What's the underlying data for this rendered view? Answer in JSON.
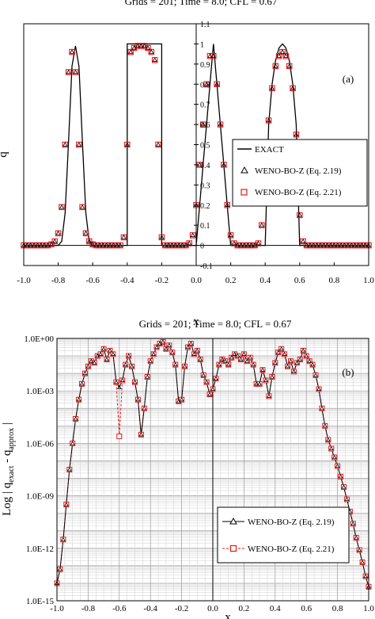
{
  "chart_data": [
    {
      "id": "a",
      "type": "scatter",
      "title": "Grids = 201; Time = 8.0; CFL = 0.67",
      "panel_label": "(a)",
      "xlabel": "x",
      "ylabel": "q",
      "xlim": [
        -1.0,
        1.0
      ],
      "ylim": [
        -0.1,
        1.1
      ],
      "x_ticks": [
        "-1.0",
        "-0.8",
        "-0.6",
        "-0.4",
        "-0.2",
        "0.0",
        "0.2",
        "0.4",
        "0.6",
        "0.8",
        "1.0"
      ],
      "y_ticks": [
        "-0.1",
        "0",
        "0.1",
        "0.2",
        "0.3",
        "0.4",
        "0.5",
        "0.6",
        "0.7",
        "0.8",
        "0.9",
        "1",
        "1.1"
      ],
      "grid": false,
      "legend_position": "right",
      "legend": [
        "EXACT",
        "WENO-BO-Z (Eq. 2.19)",
        "WENO-BO-Z (Eq. 2.21)"
      ],
      "series": [
        {
          "name": "EXACT",
          "style": "line",
          "color": "#000000",
          "x": [
            -1.0,
            -0.8,
            -0.78,
            -0.76,
            -0.74,
            -0.72,
            -0.7,
            -0.68,
            -0.66,
            -0.64,
            -0.62,
            -0.6,
            -0.4,
            -0.4,
            -0.2,
            -0.2,
            0.0,
            0.02,
            0.04,
            0.06,
            0.08,
            0.1,
            0.12,
            0.14,
            0.16,
            0.18,
            0.2,
            0.4,
            0.42,
            0.44,
            0.46,
            0.48,
            0.5,
            0.52,
            0.54,
            0.56,
            0.58,
            0.6,
            1.0
          ],
          "y": [
            0.0,
            0.0,
            0.02,
            0.16,
            0.52,
            0.89,
            0.99,
            0.89,
            0.52,
            0.16,
            0.02,
            0.0,
            0.0,
            1.0,
            1.0,
            0.0,
            0.0,
            0.2,
            0.4,
            0.6,
            0.8,
            1.0,
            0.8,
            0.6,
            0.4,
            0.2,
            0.0,
            0.0,
            0.6,
            0.8,
            0.917,
            0.98,
            1.0,
            0.98,
            0.917,
            0.8,
            0.6,
            0.0,
            0.0
          ]
        },
        {
          "name": "WENO-BO-Z (Eq. 2.19)",
          "style": "marker",
          "marker": "triangle",
          "color": "#000000",
          "x": [
            -1.0,
            -0.98,
            -0.96,
            -0.94,
            -0.92,
            -0.9,
            -0.88,
            -0.86,
            -0.84,
            -0.82,
            -0.8,
            -0.78,
            -0.76,
            -0.74,
            -0.72,
            -0.7,
            -0.68,
            -0.66,
            -0.64,
            -0.62,
            -0.6,
            -0.58,
            -0.56,
            -0.54,
            -0.52,
            -0.5,
            -0.48,
            -0.46,
            -0.44,
            -0.42,
            -0.4,
            -0.38,
            -0.36,
            -0.34,
            -0.32,
            -0.3,
            -0.28,
            -0.26,
            -0.24,
            -0.22,
            -0.2,
            -0.18,
            -0.16,
            -0.14,
            -0.12,
            -0.1,
            -0.08,
            -0.06,
            -0.04,
            -0.02,
            0.0,
            0.02,
            0.04,
            0.06,
            0.08,
            0.1,
            0.12,
            0.14,
            0.16,
            0.18,
            0.2,
            0.22,
            0.24,
            0.26,
            0.28,
            0.3,
            0.32,
            0.34,
            0.36,
            0.38,
            0.4,
            0.42,
            0.44,
            0.46,
            0.48,
            0.5,
            0.52,
            0.54,
            0.56,
            0.58,
            0.6,
            0.62,
            0.64,
            0.66,
            0.68,
            0.7,
            0.72,
            0.74,
            0.76,
            0.78,
            0.8,
            0.82,
            0.84,
            0.86,
            0.88,
            0.9,
            0.92,
            0.94,
            0.96,
            0.98,
            1.0
          ],
          "y": [
            0.0,
            0.0,
            0.0,
            0.0,
            0.0,
            0.0,
            0.0,
            0.0,
            0.005,
            0.02,
            0.06,
            0.19,
            0.5,
            0.86,
            0.96,
            0.86,
            0.5,
            0.19,
            0.06,
            0.02,
            0.005,
            0.0,
            0.0,
            0.0,
            0.0,
            0.0,
            0.0,
            0.0,
            0.0,
            0.04,
            0.5,
            0.96,
            0.98,
            0.99,
            0.99,
            0.99,
            0.98,
            0.96,
            0.92,
            0.5,
            0.04,
            0.0,
            0.0,
            0.0,
            0.0,
            0.0,
            0.0,
            0.0,
            0.01,
            0.05,
            0.2,
            0.4,
            0.6,
            0.8,
            0.94,
            0.94,
            0.8,
            0.6,
            0.4,
            0.2,
            0.05,
            0.01,
            0.0,
            0.0,
            0.0,
            0.0,
            0.0,
            0.0,
            0.01,
            0.1,
            0.42,
            0.62,
            0.78,
            0.89,
            0.94,
            0.96,
            0.94,
            0.89,
            0.78,
            0.55,
            0.15,
            0.02,
            0.0,
            0.0,
            0.0,
            0.0,
            0.0,
            0.0,
            0.0,
            0.0,
            0.0,
            0.0,
            0.0,
            0.0,
            0.0,
            0.0,
            0.0,
            0.0,
            0.0,
            0.0,
            0.0
          ]
        },
        {
          "name": "WENO-BO-Z (Eq. 2.21)",
          "style": "marker",
          "marker": "square",
          "color": "#e8181c",
          "x": [
            -1.0,
            -0.98,
            -0.96,
            -0.94,
            -0.92,
            -0.9,
            -0.88,
            -0.86,
            -0.84,
            -0.82,
            -0.8,
            -0.78,
            -0.76,
            -0.74,
            -0.72,
            -0.7,
            -0.68,
            -0.66,
            -0.64,
            -0.62,
            -0.6,
            -0.58,
            -0.56,
            -0.54,
            -0.52,
            -0.5,
            -0.48,
            -0.46,
            -0.44,
            -0.42,
            -0.4,
            -0.38,
            -0.36,
            -0.34,
            -0.32,
            -0.3,
            -0.28,
            -0.26,
            -0.24,
            -0.22,
            -0.2,
            -0.18,
            -0.16,
            -0.14,
            -0.12,
            -0.1,
            -0.08,
            -0.06,
            -0.04,
            -0.02,
            0.0,
            0.02,
            0.04,
            0.06,
            0.08,
            0.1,
            0.12,
            0.14,
            0.16,
            0.18,
            0.2,
            0.22,
            0.24,
            0.26,
            0.28,
            0.3,
            0.32,
            0.34,
            0.36,
            0.38,
            0.4,
            0.42,
            0.44,
            0.46,
            0.48,
            0.5,
            0.52,
            0.54,
            0.56,
            0.58,
            0.6,
            0.62,
            0.64,
            0.66,
            0.68,
            0.7,
            0.72,
            0.74,
            0.76,
            0.78,
            0.8,
            0.82,
            0.84,
            0.86,
            0.88,
            0.9,
            0.92,
            0.94,
            0.96,
            0.98,
            1.0
          ],
          "y": [
            0.0,
            0.0,
            0.0,
            0.0,
            0.0,
            0.0,
            0.0,
            0.0,
            0.005,
            0.02,
            0.06,
            0.19,
            0.5,
            0.86,
            0.96,
            0.86,
            0.5,
            0.19,
            0.06,
            0.02,
            0.005,
            0.0,
            0.0,
            0.0,
            0.0,
            0.0,
            0.0,
            0.0,
            0.0,
            0.04,
            0.5,
            0.96,
            0.98,
            0.99,
            0.99,
            0.99,
            0.98,
            0.96,
            0.92,
            0.5,
            0.04,
            0.0,
            0.0,
            0.0,
            0.0,
            0.0,
            0.0,
            0.0,
            0.01,
            0.05,
            0.2,
            0.4,
            0.6,
            0.8,
            0.94,
            0.94,
            0.8,
            0.6,
            0.4,
            0.2,
            0.05,
            0.01,
            0.0,
            0.0,
            0.0,
            0.0,
            0.0,
            0.0,
            0.01,
            0.1,
            0.42,
            0.62,
            0.78,
            0.89,
            0.94,
            0.96,
            0.94,
            0.89,
            0.78,
            0.55,
            0.15,
            0.02,
            0.0,
            0.0,
            0.0,
            0.0,
            0.0,
            0.0,
            0.0,
            0.0,
            0.0,
            0.0,
            0.0,
            0.0,
            0.0,
            0.0,
            0.0,
            0.0,
            0.0,
            0.0,
            0.0
          ]
        }
      ]
    },
    {
      "id": "b",
      "type": "line",
      "title": "Grids = 201; Time = 8.0; CFL = 0.67",
      "panel_label": "(b)",
      "xlabel": "x",
      "ylabel": "Log | q_exact - q_approx |",
      "ylabel_parts": {
        "prefix": "Log | q",
        "sub1": "exact",
        "middle": " - q",
        "sub2": "approx",
        "suffix": " |"
      },
      "xlim": [
        -1.0,
        1.0
      ],
      "ylim_log10": [
        -15,
        0
      ],
      "y_scale": "log",
      "x_ticks": [
        "-1.0",
        "-0.8",
        "-0.6",
        "-0.4",
        "-0.2",
        "0.0",
        "0.2",
        "0.4",
        "0.6",
        "0.8",
        "1.0"
      ],
      "y_ticks": [
        "1.0E+00",
        "1.0E-03",
        "1.0E-06",
        "1.0E-09",
        "1.0E-12",
        "1.0E-15"
      ],
      "grid": true,
      "legend_position": "bottom-right",
      "legend": [
        "WENO-BO-Z (Eq. 2.19)",
        "WENO-BO-Z (Eq. 2.21)"
      ],
      "series": [
        {
          "name": "WENO-BO-Z (Eq. 2.19)",
          "style": "line-marker",
          "marker": "triangle",
          "color": "#000000",
          "dash": "solid",
          "x": [
            -1.0,
            -0.98,
            -0.96,
            -0.94,
            -0.92,
            -0.9,
            -0.88,
            -0.86,
            -0.84,
            -0.82,
            -0.8,
            -0.78,
            -0.76,
            -0.74,
            -0.72,
            -0.7,
            -0.68,
            -0.66,
            -0.64,
            -0.62,
            -0.6,
            -0.58,
            -0.56,
            -0.54,
            -0.52,
            -0.5,
            -0.48,
            -0.46,
            -0.44,
            -0.42,
            -0.4,
            -0.38,
            -0.36,
            -0.34,
            -0.32,
            -0.3,
            -0.28,
            -0.26,
            -0.24,
            -0.22,
            -0.2,
            -0.18,
            -0.16,
            -0.14,
            -0.12,
            -0.1,
            -0.08,
            -0.06,
            -0.04,
            -0.02,
            0.0,
            0.02,
            0.04,
            0.06,
            0.08,
            0.1,
            0.12,
            0.14,
            0.16,
            0.18,
            0.2,
            0.22,
            0.24,
            0.26,
            0.28,
            0.3,
            0.32,
            0.34,
            0.36,
            0.38,
            0.4,
            0.42,
            0.44,
            0.46,
            0.48,
            0.5,
            0.52,
            0.54,
            0.56,
            0.58,
            0.6,
            0.62,
            0.64,
            0.66,
            0.68,
            0.7,
            0.72,
            0.74,
            0.76,
            0.78,
            0.8,
            0.82,
            0.84,
            0.86,
            0.88,
            0.9,
            0.92,
            0.94,
            0.96,
            0.98,
            1.0
          ],
          "y_log10": [
            -14.0,
            -13.2,
            -11.5,
            -9.5,
            -7.5,
            -6.0,
            -4.6,
            -3.5,
            -2.6,
            -2.0,
            -1.6,
            -1.3,
            -1.4,
            -1.0,
            -0.9,
            -0.6,
            -1.2,
            -0.7,
            -0.9,
            -2.5,
            -2.8,
            -2.4,
            -1.5,
            -1.0,
            -1.6,
            -2.5,
            -3.5,
            -5.5,
            -4.0,
            -2.2,
            -1.3,
            -0.9,
            -0.5,
            -0.3,
            -0.2,
            -0.6,
            -0.4,
            -0.8,
            -1.5,
            -3.6,
            -3.5,
            -1.6,
            -0.5,
            -0.3,
            -0.9,
            -0.7,
            -1.2,
            -2.1,
            -2.5,
            -3.2,
            -2.9,
            -2.3,
            -1.5,
            -1.2,
            -1.3,
            -1.5,
            -1.1,
            -0.9,
            -1.0,
            -1.2,
            -0.9,
            -1.3,
            -1.1,
            -1.5,
            -2.6,
            -2.6,
            -1.8,
            -2.4,
            -3.3,
            -2.2,
            -1.4,
            -0.8,
            -0.6,
            -0.9,
            -1.6,
            -1.3,
            -1.9,
            -1.4,
            -1.2,
            -0.7,
            -1.0,
            -1.3,
            -1.5,
            -2.1,
            -2.9,
            -4.0,
            -5.0,
            -5.8,
            -6.3,
            -6.8,
            -7.3,
            -7.9,
            -8.5,
            -9.2,
            -9.9,
            -10.6,
            -11.4,
            -12.1,
            -12.8,
            -13.6,
            -14.2
          ]
        },
        {
          "name": "WENO-BO-Z (Eq. 2.21)",
          "style": "line-marker",
          "marker": "square",
          "color": "#e8181c",
          "dash": "dashed",
          "x": [
            -1.0,
            -0.98,
            -0.96,
            -0.94,
            -0.92,
            -0.9,
            -0.88,
            -0.86,
            -0.84,
            -0.82,
            -0.8,
            -0.78,
            -0.76,
            -0.74,
            -0.72,
            -0.7,
            -0.68,
            -0.66,
            -0.64,
            -0.62,
            -0.6,
            -0.58,
            -0.56,
            -0.54,
            -0.52,
            -0.5,
            -0.48,
            -0.46,
            -0.44,
            -0.42,
            -0.4,
            -0.38,
            -0.36,
            -0.34,
            -0.32,
            -0.3,
            -0.28,
            -0.26,
            -0.24,
            -0.22,
            -0.2,
            -0.18,
            -0.16,
            -0.14,
            -0.12,
            -0.1,
            -0.08,
            -0.06,
            -0.04,
            -0.02,
            0.0,
            0.02,
            0.04,
            0.06,
            0.08,
            0.1,
            0.12,
            0.14,
            0.16,
            0.18,
            0.2,
            0.22,
            0.24,
            0.26,
            0.28,
            0.3,
            0.32,
            0.34,
            0.36,
            0.38,
            0.4,
            0.42,
            0.44,
            0.46,
            0.48,
            0.5,
            0.52,
            0.54,
            0.56,
            0.58,
            0.6,
            0.62,
            0.64,
            0.66,
            0.68,
            0.7,
            0.72,
            0.74,
            0.76,
            0.78,
            0.8,
            0.82,
            0.84,
            0.86,
            0.88,
            0.9,
            0.92,
            0.94,
            0.96,
            0.98,
            1.0
          ],
          "y_log10": [
            -14.0,
            -13.2,
            -11.5,
            -9.5,
            -7.5,
            -6.0,
            -4.6,
            -3.5,
            -2.6,
            -2.0,
            -1.6,
            -1.3,
            -1.4,
            -1.0,
            -0.9,
            -0.6,
            -1.2,
            -0.7,
            -0.9,
            -2.5,
            -5.6,
            -2.4,
            -1.5,
            -1.0,
            -1.6,
            -2.5,
            -3.5,
            -5.5,
            -4.0,
            -2.2,
            -1.3,
            -0.9,
            -0.5,
            -0.3,
            -0.2,
            -0.6,
            -0.4,
            -0.8,
            -1.5,
            -3.6,
            -3.5,
            -1.6,
            -0.5,
            -0.3,
            -0.9,
            -0.7,
            -1.2,
            -2.1,
            -2.5,
            -3.2,
            -2.9,
            -2.3,
            -1.5,
            -1.2,
            -1.3,
            -1.5,
            -1.1,
            -0.9,
            -1.0,
            -1.2,
            -0.9,
            -1.3,
            -1.1,
            -1.5,
            -2.6,
            -2.6,
            -1.8,
            -2.4,
            -3.3,
            -2.2,
            -1.4,
            -0.8,
            -0.6,
            -0.9,
            -1.6,
            -1.3,
            -1.9,
            -1.4,
            -1.2,
            -0.7,
            -1.0,
            -1.3,
            -1.5,
            -2.1,
            -2.9,
            -4.0,
            -5.0,
            -5.8,
            -6.3,
            -6.8,
            -7.3,
            -7.9,
            -8.5,
            -9.2,
            -9.9,
            -10.6,
            -11.4,
            -12.1,
            -12.8,
            -13.6,
            -14.2
          ]
        }
      ]
    }
  ]
}
